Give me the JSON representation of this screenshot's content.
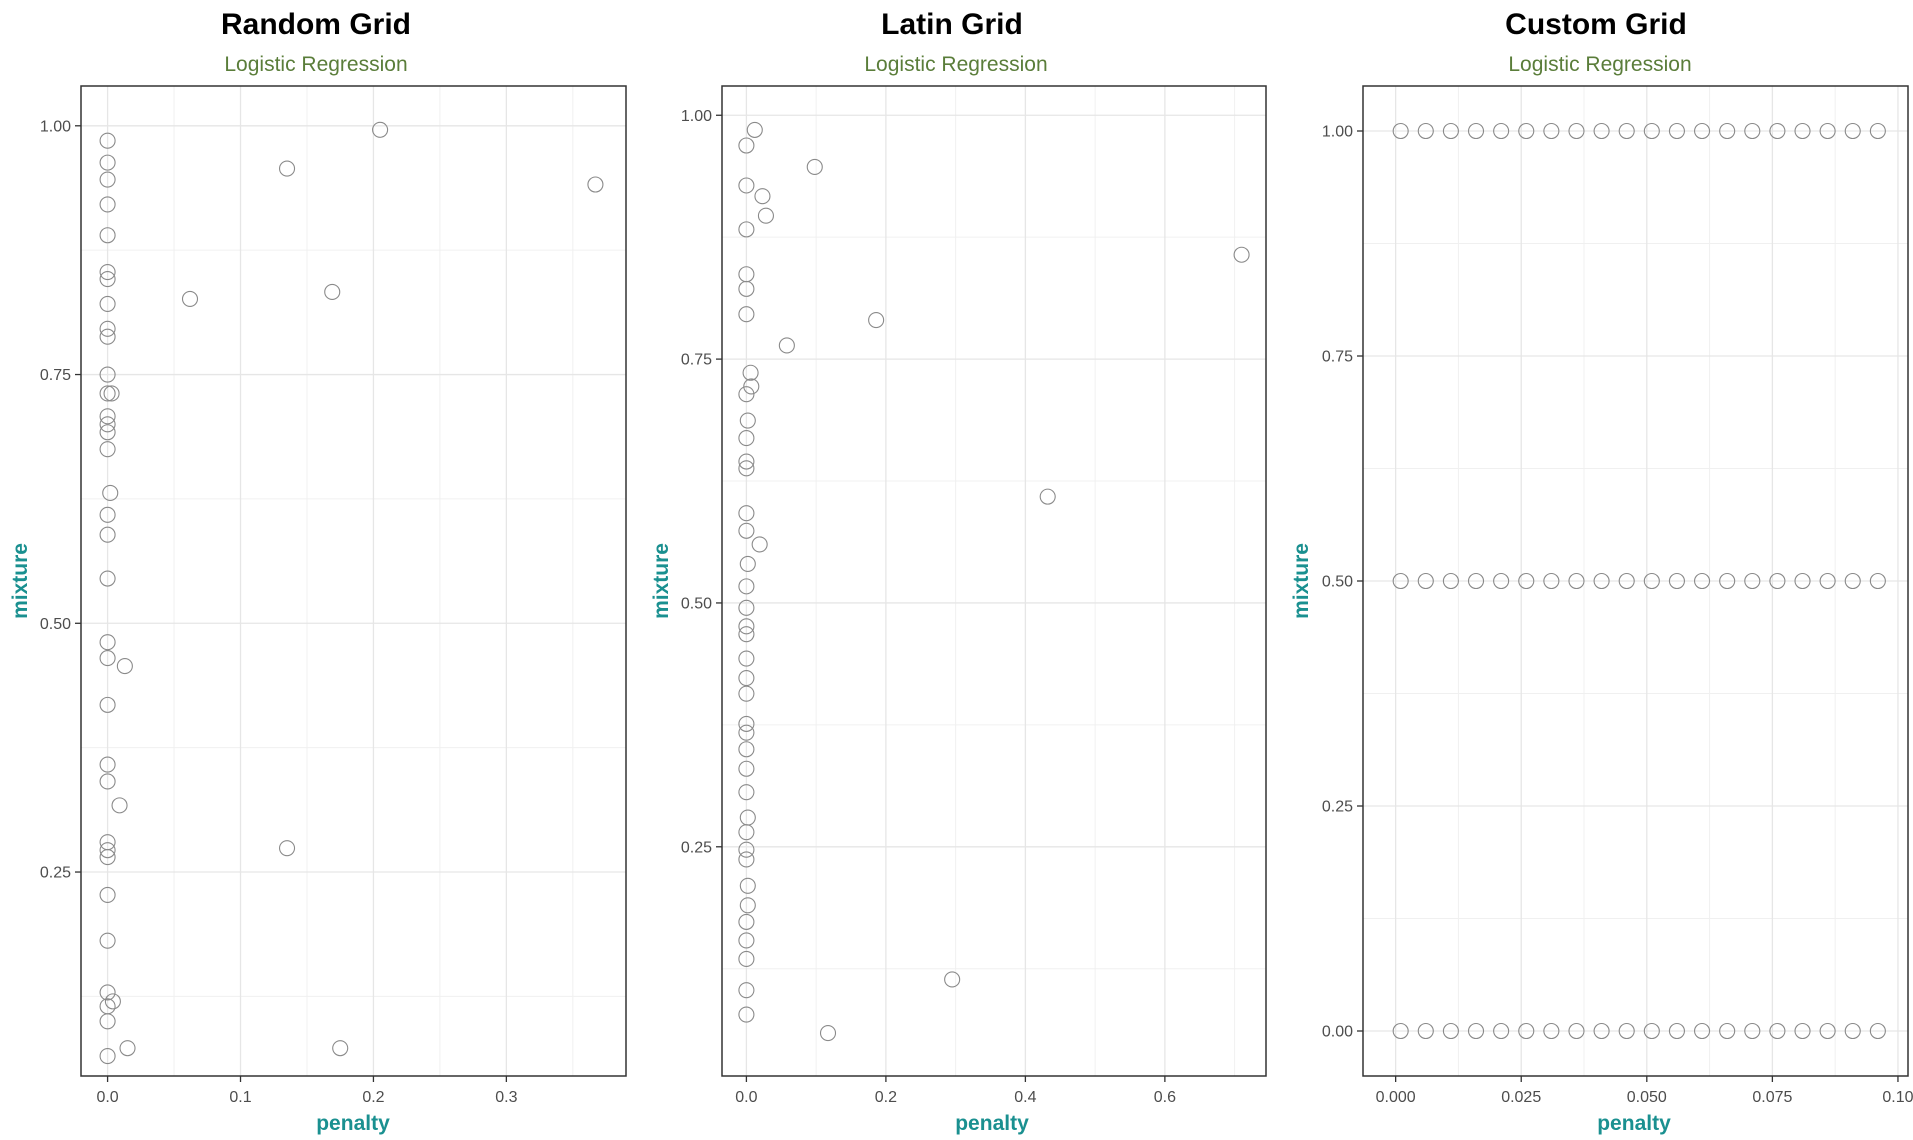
{
  "chart_data": [
    {
      "type": "scatter",
      "title": "Random Grid",
      "subtitle": "Logistic Regression",
      "xlabel": "penalty",
      "ylabel": "mixture",
      "xlim": [
        -0.02,
        0.39
      ],
      "ylim": [
        0.045,
        1.04
      ],
      "xticks": [
        0,
        0.1,
        0.2,
        0.3
      ],
      "xtick_labels": [
        "0.0",
        "0.1",
        "0.2",
        "0.3"
      ],
      "yticks": [
        0.25,
        0.5,
        0.75,
        1.0
      ],
      "ytick_labels": [
        "0.25",
        "0.50",
        "0.75",
        "1.00"
      ],
      "grid": true,
      "points": [
        {
          "x": 0.0,
          "y": 0.985
        },
        {
          "x": 0.0,
          "y": 0.963
        },
        {
          "x": 0.0,
          "y": 0.946
        },
        {
          "x": 0.0,
          "y": 0.921
        },
        {
          "x": 0.0,
          "y": 0.89
        },
        {
          "x": 0.0,
          "y": 0.853
        },
        {
          "x": 0.0,
          "y": 0.846
        },
        {
          "x": 0.0,
          "y": 0.821
        },
        {
          "x": 0.0,
          "y": 0.796
        },
        {
          "x": 0.0,
          "y": 0.788
        },
        {
          "x": 0.0,
          "y": 0.75
        },
        {
          "x": 0.0,
          "y": 0.731
        },
        {
          "x": 0.003,
          "y": 0.731
        },
        {
          "x": 0.0,
          "y": 0.708
        },
        {
          "x": 0.0,
          "y": 0.7
        },
        {
          "x": 0.0,
          "y": 0.692
        },
        {
          "x": 0.0,
          "y": 0.675
        },
        {
          "x": 0.002,
          "y": 0.631
        },
        {
          "x": 0.0,
          "y": 0.609
        },
        {
          "x": 0.0,
          "y": 0.589
        },
        {
          "x": 0.0,
          "y": 0.545
        },
        {
          "x": 0.0,
          "y": 0.481
        },
        {
          "x": 0.0,
          "y": 0.465
        },
        {
          "x": 0.013,
          "y": 0.457
        },
        {
          "x": 0.0,
          "y": 0.418
        },
        {
          "x": 0.0,
          "y": 0.358
        },
        {
          "x": 0.0,
          "y": 0.341
        },
        {
          "x": 0.009,
          "y": 0.317
        },
        {
          "x": 0.0,
          "y": 0.28
        },
        {
          "x": 0.0,
          "y": 0.272
        },
        {
          "x": 0.0,
          "y": 0.265
        },
        {
          "x": 0.0,
          "y": 0.227
        },
        {
          "x": 0.0,
          "y": 0.181
        },
        {
          "x": 0.0,
          "y": 0.129
        },
        {
          "x": 0.0,
          "y": 0.115
        },
        {
          "x": 0.004,
          "y": 0.12
        },
        {
          "x": 0.0,
          "y": 0.1
        },
        {
          "x": 0.015,
          "y": 0.073
        },
        {
          "x": 0.0,
          "y": 0.065
        },
        {
          "x": 0.062,
          "y": 0.826
        },
        {
          "x": 0.135,
          "y": 0.957
        },
        {
          "x": 0.205,
          "y": 0.996
        },
        {
          "x": 0.169,
          "y": 0.833
        },
        {
          "x": 0.367,
          "y": 0.941
        },
        {
          "x": 0.135,
          "y": 0.274
        },
        {
          "x": 0.175,
          "y": 0.073
        }
      ]
    },
    {
      "type": "scatter",
      "title": "Latin Grid",
      "subtitle": "Logistic Regression",
      "xlabel": "penalty",
      "ylabel": "mixture",
      "xlim": [
        -0.035,
        0.745
      ],
      "ylim": [
        0.015,
        1.03
      ],
      "xticks": [
        0,
        0.2,
        0.4,
        0.6
      ],
      "xtick_labels": [
        "0.0",
        "0.2",
        "0.4",
        "0.6"
      ],
      "yticks": [
        0.25,
        0.5,
        0.75,
        1.0
      ],
      "ytick_labels": [
        "0.25",
        "0.50",
        "0.75",
        "1.00"
      ],
      "grid": true,
      "points": [
        {
          "x": 0.012,
          "y": 0.985
        },
        {
          "x": 0.0,
          "y": 0.969
        },
        {
          "x": 0.0,
          "y": 0.928
        },
        {
          "x": 0.023,
          "y": 0.917
        },
        {
          "x": 0.028,
          "y": 0.897
        },
        {
          "x": 0.0,
          "y": 0.883
        },
        {
          "x": 0.0,
          "y": 0.837
        },
        {
          "x": 0.0,
          "y": 0.822
        },
        {
          "x": 0.0,
          "y": 0.796
        },
        {
          "x": 0.006,
          "y": 0.736
        },
        {
          "x": 0.007,
          "y": 0.722
        },
        {
          "x": 0.0,
          "y": 0.714
        },
        {
          "x": 0.002,
          "y": 0.687
        },
        {
          "x": 0.0,
          "y": 0.669
        },
        {
          "x": 0.0,
          "y": 0.645
        },
        {
          "x": 0.0,
          "y": 0.638
        },
        {
          "x": 0.0,
          "y": 0.592
        },
        {
          "x": 0.0,
          "y": 0.574
        },
        {
          "x": 0.019,
          "y": 0.56
        },
        {
          "x": 0.002,
          "y": 0.54
        },
        {
          "x": 0.0,
          "y": 0.517
        },
        {
          "x": 0.0,
          "y": 0.495
        },
        {
          "x": 0.0,
          "y": 0.476
        },
        {
          "x": 0.0,
          "y": 0.468
        },
        {
          "x": 0.0,
          "y": 0.443
        },
        {
          "x": 0.0,
          "y": 0.423
        },
        {
          "x": 0.0,
          "y": 0.407
        },
        {
          "x": 0.0,
          "y": 0.376
        },
        {
          "x": 0.0,
          "y": 0.367
        },
        {
          "x": 0.0,
          "y": 0.35
        },
        {
          "x": 0.0,
          "y": 0.33
        },
        {
          "x": 0.0,
          "y": 0.306
        },
        {
          "x": 0.002,
          "y": 0.28
        },
        {
          "x": 0.0,
          "y": 0.265
        },
        {
          "x": 0.0,
          "y": 0.247
        },
        {
          "x": 0.0,
          "y": 0.237
        },
        {
          "x": 0.002,
          "y": 0.21
        },
        {
          "x": 0.002,
          "y": 0.19
        },
        {
          "x": 0.0,
          "y": 0.173
        },
        {
          "x": 0.0,
          "y": 0.154
        },
        {
          "x": 0.0,
          "y": 0.135
        },
        {
          "x": 0.0,
          "y": 0.103
        },
        {
          "x": 0.0,
          "y": 0.078
        },
        {
          "x": 0.098,
          "y": 0.947
        },
        {
          "x": 0.058,
          "y": 0.764
        },
        {
          "x": 0.186,
          "y": 0.79
        },
        {
          "x": 0.432,
          "y": 0.609
        },
        {
          "x": 0.71,
          "y": 0.857
        },
        {
          "x": 0.295,
          "y": 0.114
        },
        {
          "x": 0.117,
          "y": 0.059
        }
      ]
    },
    {
      "type": "scatter",
      "title": "Custom Grid",
      "subtitle": "Logistic Regression",
      "xlabel": "penalty",
      "ylabel": "mixture",
      "xlim": [
        -0.0065,
        0.102
      ],
      "ylim": [
        -0.05,
        1.05
      ],
      "xticks": [
        0,
        0.025,
        0.05,
        0.075,
        0.1
      ],
      "xtick_labels": [
        "0.000",
        "0.025",
        "0.050",
        "0.075",
        "0.10"
      ],
      "yticks": [
        0,
        0.25,
        0.5,
        0.75,
        1.0
      ],
      "ytick_labels": [
        "0.00",
        "0.25",
        "0.50",
        "0.75",
        "1.00"
      ],
      "grid": true,
      "grid_x": [
        0.001,
        0.006,
        0.011,
        0.016,
        0.021,
        0.026,
        0.031,
        0.036,
        0.041,
        0.046,
        0.051,
        0.056,
        0.061,
        0.066,
        0.071,
        0.076,
        0.081,
        0.086,
        0.091,
        0.096
      ],
      "grid_y": [
        0,
        0.5,
        1.0
      ]
    }
  ]
}
